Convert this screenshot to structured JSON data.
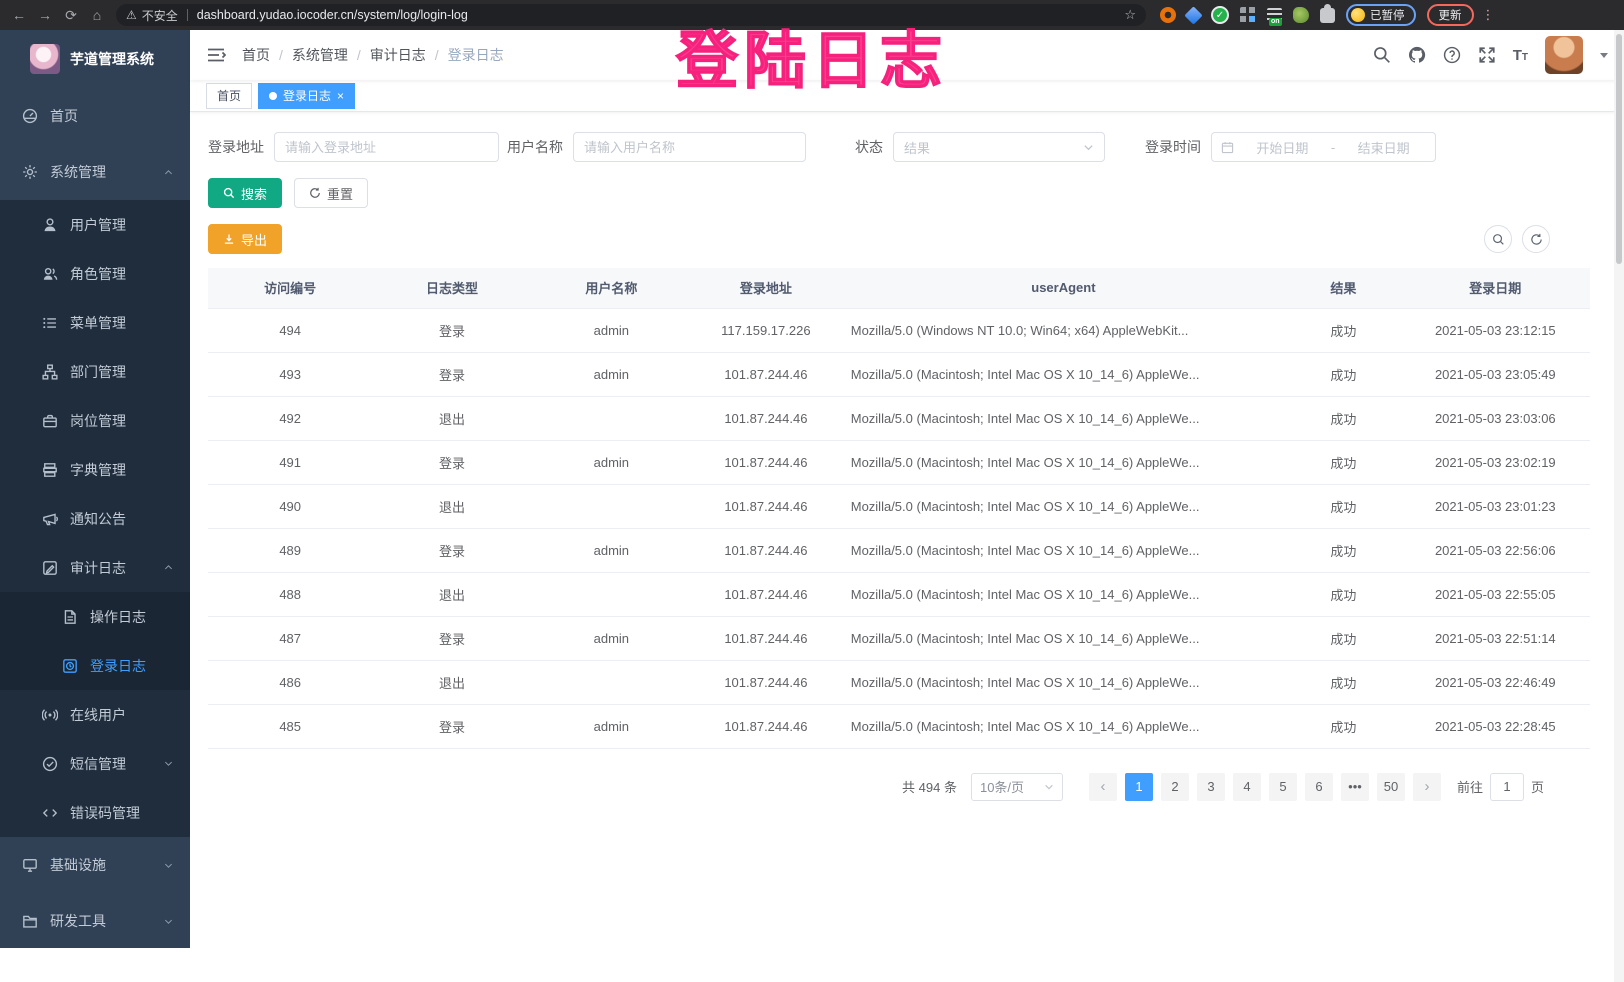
{
  "watermark": "登陆日志",
  "browser": {
    "security_label": "不安全",
    "url": "dashboard.yudao.iocoder.cn/system/log/login-log",
    "profile_badge": "已暂停",
    "update_button": "更新"
  },
  "sidebar": {
    "app_title": "芋道管理系统",
    "items": [
      {
        "label": "首页",
        "icon": "home-dashboard-icon",
        "level": 1,
        "state": "none"
      },
      {
        "label": "系统管理",
        "icon": "gear-icon",
        "level": 1,
        "state": "expanded"
      },
      {
        "label": "用户管理",
        "icon": "user-icon",
        "level": 2,
        "state": "none"
      },
      {
        "label": "角色管理",
        "icon": "role-users-icon",
        "level": 2,
        "state": "none"
      },
      {
        "label": "菜单管理",
        "icon": "menu-list-icon",
        "level": 2,
        "state": "none"
      },
      {
        "label": "部门管理",
        "icon": "org-tree-icon",
        "level": 2,
        "state": "none"
      },
      {
        "label": "岗位管理",
        "icon": "post-briefcase-icon",
        "level": 2,
        "state": "none"
      },
      {
        "label": "字典管理",
        "icon": "dictionary-book-icon",
        "level": 2,
        "state": "none"
      },
      {
        "label": "通知公告",
        "icon": "megaphone-icon",
        "level": 2,
        "state": "none"
      },
      {
        "label": "审计日志",
        "icon": "audit-edit-icon",
        "level": 2,
        "state": "expanded"
      },
      {
        "label": "操作日志",
        "icon": "operation-doc-icon",
        "level": 3,
        "state": "none"
      },
      {
        "label": "登录日志",
        "icon": "login-clock-icon",
        "level": 3,
        "state": "none",
        "active": true
      },
      {
        "label": "在线用户",
        "icon": "online-signal-icon",
        "level": 2,
        "state": "none"
      },
      {
        "label": "短信管理",
        "icon": "sms-shield-icon",
        "level": 2,
        "state": "collapsed"
      },
      {
        "label": "错误码管理",
        "icon": "error-code-icon",
        "level": 2,
        "state": "none"
      },
      {
        "label": "基础设施",
        "icon": "infra-monitor-icon",
        "level": 1,
        "state": "collapsed"
      },
      {
        "label": "研发工具",
        "icon": "devtools-folder-icon",
        "level": 1,
        "state": "collapsed"
      }
    ]
  },
  "breadcrumb": {
    "items": [
      "首页",
      "系统管理",
      "审计日志",
      "登录日志"
    ]
  },
  "tabs": [
    {
      "label": "首页",
      "active": false,
      "closable": false
    },
    {
      "label": "登录日志",
      "active": true,
      "closable": true
    }
  ],
  "filters": {
    "login_address_label": "登录地址",
    "login_address_placeholder": "请输入登录地址",
    "username_label": "用户名称",
    "username_placeholder": "请输入用户名称",
    "status_label": "状态",
    "status_placeholder": "结果",
    "login_time_label": "登录时间",
    "date_start_placeholder": "开始日期",
    "date_separator": "-",
    "date_end_placeholder": "结束日期",
    "search_label": "搜索",
    "reset_label": "重置",
    "export_label": "导出"
  },
  "table": {
    "columns": [
      "访问编号",
      "日志类型",
      "用户名称",
      "登录地址",
      "userAgent",
      "结果",
      "登录日期"
    ],
    "rows": [
      [
        "494",
        "登录",
        "admin",
        "117.159.17.226",
        "Mozilla/5.0 (Windows NT 10.0; Win64; x64) AppleWebKit...",
        "成功",
        "2021-05-03 23:12:15"
      ],
      [
        "493",
        "登录",
        "admin",
        "101.87.244.46",
        "Mozilla/5.0 (Macintosh; Intel Mac OS X 10_14_6) AppleWe...",
        "成功",
        "2021-05-03 23:05:49"
      ],
      [
        "492",
        "退出",
        "",
        "101.87.244.46",
        "Mozilla/5.0 (Macintosh; Intel Mac OS X 10_14_6) AppleWe...",
        "成功",
        "2021-05-03 23:03:06"
      ],
      [
        "491",
        "登录",
        "admin",
        "101.87.244.46",
        "Mozilla/5.0 (Macintosh; Intel Mac OS X 10_14_6) AppleWe...",
        "成功",
        "2021-05-03 23:02:19"
      ],
      [
        "490",
        "退出",
        "",
        "101.87.244.46",
        "Mozilla/5.0 (Macintosh; Intel Mac OS X 10_14_6) AppleWe...",
        "成功",
        "2021-05-03 23:01:23"
      ],
      [
        "489",
        "登录",
        "admin",
        "101.87.244.46",
        "Mozilla/5.0 (Macintosh; Intel Mac OS X 10_14_6) AppleWe...",
        "成功",
        "2021-05-03 22:56:06"
      ],
      [
        "488",
        "退出",
        "",
        "101.87.244.46",
        "Mozilla/5.0 (Macintosh; Intel Mac OS X 10_14_6) AppleWe...",
        "成功",
        "2021-05-03 22:55:05"
      ],
      [
        "487",
        "登录",
        "admin",
        "101.87.244.46",
        "Mozilla/5.0 (Macintosh; Intel Mac OS X 10_14_6) AppleWe...",
        "成功",
        "2021-05-03 22:51:14"
      ],
      [
        "486",
        "退出",
        "",
        "101.87.244.46",
        "Mozilla/5.0 (Macintosh; Intel Mac OS X 10_14_6) AppleWe...",
        "成功",
        "2021-05-03 22:46:49"
      ],
      [
        "485",
        "登录",
        "admin",
        "101.87.244.46",
        "Mozilla/5.0 (Macintosh; Intel Mac OS X 10_14_6) AppleWe...",
        "成功",
        "2021-05-03 22:28:45"
      ]
    ]
  },
  "pagination": {
    "total_text": "共 494 条",
    "page_size": "10条/页",
    "pages": [
      {
        "label": "1",
        "active": true
      },
      {
        "label": "2"
      },
      {
        "label": "3"
      },
      {
        "label": "4"
      },
      {
        "label": "5"
      },
      {
        "label": "6"
      },
      {
        "label": "•••",
        "ellipsis": true
      },
      {
        "label": "50"
      }
    ],
    "goto_label": "前往",
    "goto_value": "1",
    "page_unit_label": "页"
  },
  "colors": {
    "primary": "#409eff",
    "search_button": "#11a983",
    "export_button": "#f0a328",
    "watermark_pink": "#ff4090",
    "sidebar_bg": "#304156",
    "submenu_bg": "#1f2d3d"
  }
}
